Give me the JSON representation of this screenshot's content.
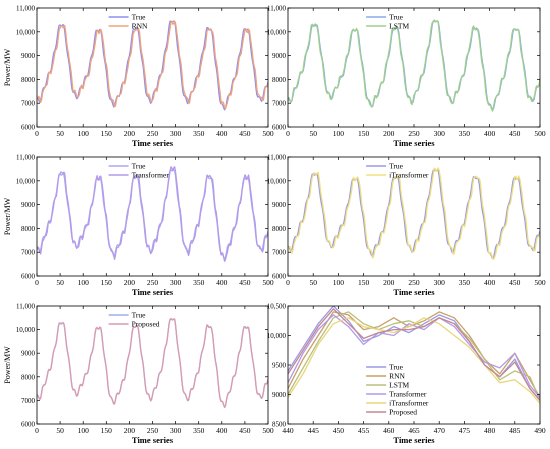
{
  "figure": {
    "background": "#ffffff"
  },
  "chart_data": [
    {
      "type": "line",
      "xlabel": "Time series",
      "ylabel": "Power/MW",
      "xlim": [
        0,
        500
      ],
      "ylim": [
        6000,
        11000
      ],
      "xticks": [
        0,
        50,
        100,
        150,
        200,
        250,
        300,
        350,
        400,
        450,
        500
      ],
      "yticks": [
        6000,
        7000,
        8000,
        9000,
        10000,
        11000
      ],
      "ytick_labels": [
        "6000",
        "7000",
        "8000",
        "9000",
        "10,000",
        "11,000"
      ],
      "legend": "top-center",
      "grid": false,
      "series": [
        {
          "name": "True",
          "color": "#8f8ff0",
          "variant": "true"
        },
        {
          "name": "RNN",
          "color": "#f0a37a",
          "variant": "rnn"
        }
      ]
    },
    {
      "type": "line",
      "xlabel": "Time series",
      "ylabel": "",
      "xlim": [
        0,
        500
      ],
      "ylim": [
        6000,
        11000
      ],
      "xticks": [
        0,
        50,
        100,
        150,
        200,
        250,
        300,
        350,
        400,
        450,
        500
      ],
      "yticks": [
        6000,
        7000,
        8000,
        9000,
        10000,
        11000
      ],
      "ytick_labels": [
        "6000",
        "7000",
        "8000",
        "9000",
        "10,000",
        "11,000"
      ],
      "legend": "top-center",
      "grid": false,
      "series": [
        {
          "name": "True",
          "color": "#8aa8ea",
          "variant": "true"
        },
        {
          "name": "LSTM",
          "color": "#9fd08a",
          "variant": "lstm"
        }
      ]
    },
    {
      "type": "line",
      "xlabel": "Time series",
      "ylabel": "Power/MW",
      "xlim": [
        0,
        500
      ],
      "ylim": [
        6000,
        11000
      ],
      "xticks": [
        0,
        50,
        100,
        150,
        200,
        250,
        300,
        350,
        400,
        450,
        500
      ],
      "yticks": [
        6000,
        7000,
        8000,
        9000,
        10000,
        11000
      ],
      "ytick_labels": [
        "6000",
        "7000",
        "8000",
        "9000",
        "10,000",
        "11,000"
      ],
      "legend": "top-center",
      "grid": false,
      "series": [
        {
          "name": "True",
          "color": "#a9a9f2",
          "variant": "true"
        },
        {
          "name": "Transformer",
          "color": "#b49ae8",
          "variant": "transformer"
        }
      ]
    },
    {
      "type": "line",
      "xlabel": "Time series",
      "ylabel": "",
      "xlim": [
        0,
        500
      ],
      "ylim": [
        6000,
        11000
      ],
      "xticks": [
        0,
        50,
        100,
        150,
        200,
        250,
        300,
        350,
        400,
        450,
        500
      ],
      "yticks": [
        6000,
        7000,
        8000,
        9000,
        10000,
        11000
      ],
      "ytick_labels": [
        "6000",
        "7000",
        "8000",
        "9000",
        "10,000",
        "11,000"
      ],
      "legend": "top-center",
      "grid": false,
      "series": [
        {
          "name": "True",
          "color": "#9a9ae6",
          "variant": "true"
        },
        {
          "name": "iTransformer",
          "color": "#f0e07a",
          "variant": "itransformer"
        }
      ]
    },
    {
      "type": "line",
      "xlabel": "Time series",
      "ylabel": "Power/MW",
      "xlim": [
        0,
        500
      ],
      "ylim": [
        6000,
        11000
      ],
      "xticks": [
        0,
        50,
        100,
        150,
        200,
        250,
        300,
        350,
        400,
        450,
        500
      ],
      "yticks": [
        6000,
        7000,
        8000,
        9000,
        10000,
        11000
      ],
      "ytick_labels": [
        "6000",
        "7000",
        "8000",
        "9000",
        "10,000",
        "11,000"
      ],
      "legend": "top-center",
      "grid": false,
      "series": [
        {
          "name": "True",
          "color": "#9ab0ea",
          "variant": "true"
        },
        {
          "name": "Proposed",
          "color": "#d99ab0",
          "variant": "proposed"
        }
      ]
    },
    {
      "type": "line",
      "xlabel": "Time series",
      "ylabel": "",
      "xlim": [
        440,
        490
      ],
      "ylim": [
        8500,
        10500
      ],
      "xticks": [
        440,
        445,
        450,
        455,
        460,
        465,
        470,
        475,
        480,
        485,
        490
      ],
      "yticks": [
        8500,
        9000,
        9500,
        10000,
        10500
      ],
      "ytick_labels": [
        "8500",
        "9000",
        "9500",
        "10,000",
        "10,500"
      ],
      "legend": "bottom-center",
      "grid": false,
      "series": [
        {
          "name": "True",
          "color": "#9a9ae6",
          "x": [
            440,
            443,
            446,
            449,
            452,
            455,
            458,
            461,
            464,
            467,
            470,
            473,
            476,
            479,
            482,
            485,
            488,
            490
          ],
          "values": [
            9400,
            9800,
            10200,
            10500,
            10250,
            9900,
            10000,
            10150,
            10050,
            10200,
            10350,
            10250,
            9900,
            9500,
            9300,
            9600,
            9100,
            8900
          ]
        },
        {
          "name": "RNN",
          "color": "#c7a06a",
          "x": [
            440,
            443,
            446,
            449,
            452,
            455,
            458,
            461,
            464,
            467,
            470,
            473,
            476,
            479,
            482,
            485,
            488,
            490
          ],
          "values": [
            9100,
            9600,
            10000,
            10400,
            10350,
            10100,
            10150,
            10300,
            10150,
            10250,
            10400,
            10300,
            10000,
            9600,
            9350,
            9700,
            9250,
            8950
          ]
        },
        {
          "name": "LSTM",
          "color": "#b8c078",
          "x": [
            440,
            443,
            446,
            449,
            452,
            455,
            458,
            461,
            464,
            467,
            470,
            473,
            476,
            479,
            482,
            485,
            488,
            490
          ],
          "values": [
            9000,
            9450,
            9900,
            10300,
            10400,
            10200,
            10100,
            10200,
            10250,
            10150,
            10300,
            10200,
            9950,
            9600,
            9250,
            9400,
            9300,
            8900
          ]
        },
        {
          "name": "Transformer",
          "color": "#b49ae8",
          "x": [
            440,
            443,
            446,
            449,
            452,
            455,
            458,
            461,
            464,
            467,
            470,
            473,
            476,
            479,
            482,
            485,
            488,
            490
          ],
          "values": [
            9200,
            9700,
            10100,
            10350,
            10150,
            9850,
            10050,
            10000,
            10200,
            10100,
            10300,
            10150,
            9850,
            9550,
            9450,
            9700,
            9150,
            8950
          ]
        },
        {
          "name": "iTransformer",
          "color": "#e8d67a",
          "x": [
            440,
            443,
            446,
            449,
            452,
            455,
            458,
            461,
            464,
            467,
            470,
            473,
            476,
            479,
            482,
            485,
            488,
            490
          ],
          "values": [
            8950,
            9350,
            9850,
            10200,
            10300,
            10150,
            10100,
            10050,
            10150,
            10300,
            10200,
            10000,
            9800,
            9500,
            9200,
            9250,
            9050,
            8850
          ]
        },
        {
          "name": "Proposed",
          "color": "#c4868f",
          "x": [
            440,
            443,
            446,
            449,
            452,
            455,
            458,
            461,
            464,
            467,
            470,
            473,
            476,
            479,
            482,
            485,
            488,
            490
          ],
          "values": [
            9350,
            9750,
            10150,
            10450,
            10200,
            9950,
            10050,
            10100,
            10100,
            10150,
            10300,
            10200,
            9900,
            9500,
            9300,
            9550,
            9100,
            8900
          ]
        }
      ]
    }
  ]
}
